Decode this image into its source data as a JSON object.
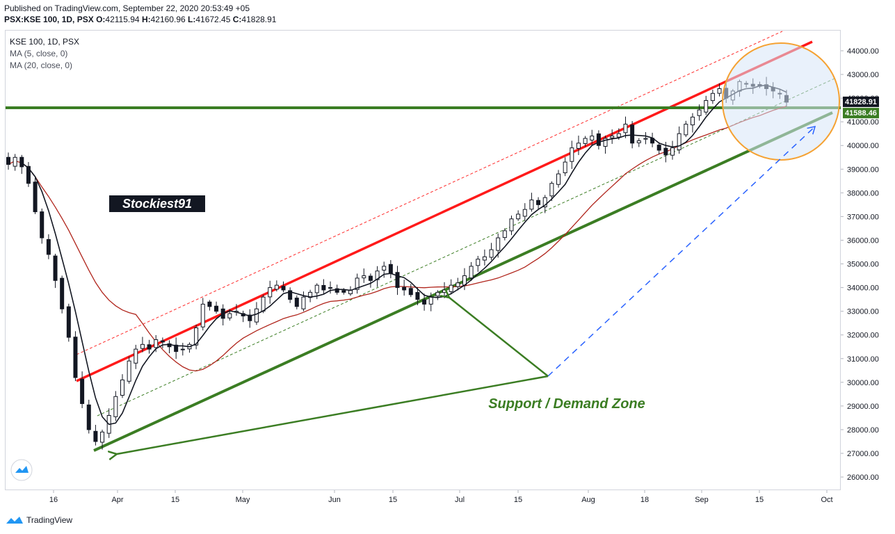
{
  "header": {
    "published": "Published on TradingView.com, September 22, 2020 20:53:49 +05",
    "symbol": "PSX:KSE 100, 1D, PSX",
    "o_label": "O:",
    "o": "42115.94",
    "h_label": "H:",
    "h": "42160.96",
    "l_label": "L:",
    "l": "41672.45",
    "c_label": "C:",
    "c": "41828.91"
  },
  "legend": {
    "title": "KSE 100, 1D, PSX",
    "ma5": "MA (5, close, 0)",
    "ma20": "MA (20, close, 0)"
  },
  "footer": {
    "brand": "TradingView"
  },
  "chart_data": {
    "type": "candlestick",
    "title": "KSE 100, 1D, PSX",
    "ylim": [
      25500,
      44800
    ],
    "y_ticks": [
      "26000.00",
      "27000.00",
      "28000.00",
      "29000.00",
      "30000.00",
      "31000.00",
      "32000.00",
      "33000.00",
      "34000.00",
      "35000.00",
      "36000.00",
      "37000.00",
      "38000.00",
      "39000.00",
      "40000.00",
      "41000.00",
      "42000.00",
      "43000.00",
      "44000.00"
    ],
    "x_ticks": [
      "16",
      "Apr",
      "15",
      "May",
      "Jun",
      "15",
      "Jul",
      "15",
      "Aug",
      "18",
      "Sep",
      "15",
      "Oct"
    ],
    "price_labels": [
      {
        "text": "41828.91",
        "value": 41828.91,
        "color": "#131722"
      },
      {
        "text": "41588.46",
        "value": 41588.46,
        "color": "#3b7d23"
      }
    ],
    "annotations": {
      "watermark": "Stockiest91",
      "zone_label": "Support / Demand Zone"
    },
    "closes": [
      39200,
      39500,
      39100,
      38400,
      37200,
      36100,
      35400,
      34300,
      33100,
      31900,
      30200,
      29100,
      28000,
      27500,
      27900,
      28600,
      29400,
      30100,
      30900,
      31400,
      31600,
      31400,
      31800,
      31700,
      31500,
      31300,
      31400,
      31600,
      32300,
      33300,
      33200,
      33000,
      32700,
      32900,
      33000,
      32800,
      32600,
      33100,
      33600,
      34000,
      34100,
      33900,
      33500,
      33200,
      33600,
      33800,
      34100,
      33900,
      34000,
      33800,
      33800,
      33900,
      34400,
      34500,
      34300,
      34700,
      34900,
      34600,
      34000,
      33900,
      33700,
      33500,
      33300,
      33600,
      33800,
      33900,
      34100,
      34200,
      34500,
      34900,
      35200,
      35300,
      35600,
      36100,
      36400,
      36900,
      37100,
      37300,
      37700,
      37500,
      37800,
      38400,
      38800,
      39300,
      39900,
      40100,
      40300,
      40400,
      40000,
      40300,
      40400,
      40500,
      40900,
      40100,
      40200,
      40300,
      40100,
      39800,
      39600,
      39900,
      40500,
      40900,
      41200,
      41500,
      41900,
      42200,
      42400,
      42000,
      42300,
      42700,
      42600,
      42500,
      42500,
      42400,
      42300,
      42200,
      41829
    ]
  }
}
